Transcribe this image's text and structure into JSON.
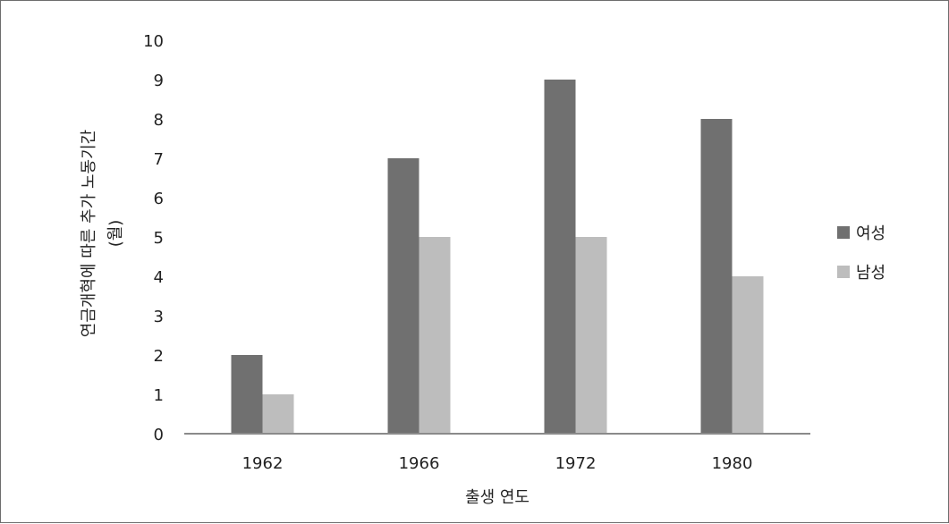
{
  "chart_data": {
    "type": "bar",
    "title": "",
    "xlabel": "출생 연도",
    "ylabel_lines": [
      "연금개혁에 따른 추가 노동기간",
      "(월)"
    ],
    "categories": [
      "1962",
      "1966",
      "1972",
      "1980"
    ],
    "series": [
      {
        "name": "여성",
        "values": [
          2,
          7,
          9,
          8
        ],
        "color": "#707070"
      },
      {
        "name": "남성",
        "values": [
          1,
          5,
          5,
          4
        ],
        "color": "#bdbdbd"
      }
    ],
    "ylim": [
      0,
      10
    ],
    "yticks": [
      "0",
      "1",
      "2",
      "3",
      "4",
      "5",
      "6",
      "7",
      "8",
      "9",
      "10"
    ],
    "grid": false,
    "legend_position": "right"
  }
}
